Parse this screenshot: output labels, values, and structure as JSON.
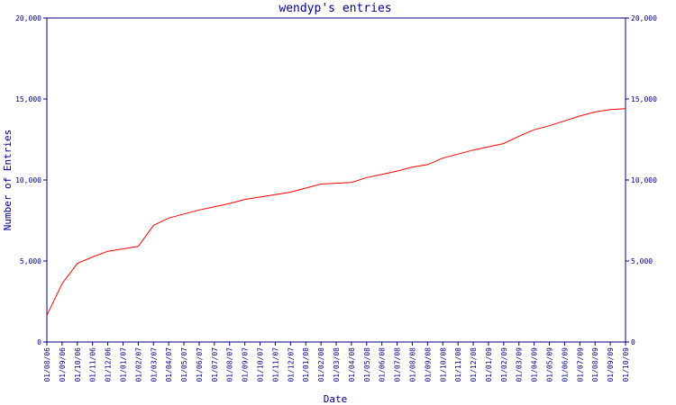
{
  "chart_data": {
    "type": "line",
    "title": "wendyp's entries",
    "xlabel": "Date",
    "ylabel": "Number of Entries",
    "ylim": [
      0,
      20000
    ],
    "yticks": [
      0,
      5000,
      10000,
      15000,
      20000
    ],
    "ytick_labels": [
      "0",
      "5,000",
      "10,000",
      "15,000",
      "20,000"
    ],
    "grid": false,
    "colors": {
      "axis": "#000080",
      "line": "#ff0000",
      "background": "#ffffff"
    },
    "categories": [
      "01/08/06",
      "01/09/06",
      "01/10/06",
      "01/11/06",
      "01/12/06",
      "01/01/07",
      "01/02/07",
      "01/03/07",
      "01/04/07",
      "01/05/07",
      "01/06/07",
      "01/07/07",
      "01/08/07",
      "01/09/07",
      "01/10/07",
      "01/11/07",
      "01/12/07",
      "01/01/08",
      "01/02/08",
      "01/03/08",
      "01/04/08",
      "01/05/08",
      "01/06/08",
      "01/07/08",
      "01/08/08",
      "01/09/08",
      "01/10/08",
      "01/11/08",
      "01/12/08",
      "01/01/09",
      "01/02/09",
      "01/03/09",
      "01/04/09",
      "01/05/09",
      "01/06/09",
      "01/07/09",
      "01/08/09",
      "01/09/09",
      "01/10/09"
    ],
    "series": [
      {
        "name": "",
        "values": [
          1650,
          3600,
          4850,
          5250,
          5600,
          5750,
          5900,
          7200,
          7650,
          7900,
          8150,
          8350,
          8550,
          8800,
          8950,
          9100,
          9250,
          9500,
          9750,
          9800,
          9850,
          10150,
          10350,
          10550,
          10800,
          10950,
          11350,
          11600,
          11850,
          12050,
          12250,
          12700,
          13100,
          13350,
          13650,
          13950,
          14200,
          14350,
          14400
        ]
      }
    ]
  }
}
